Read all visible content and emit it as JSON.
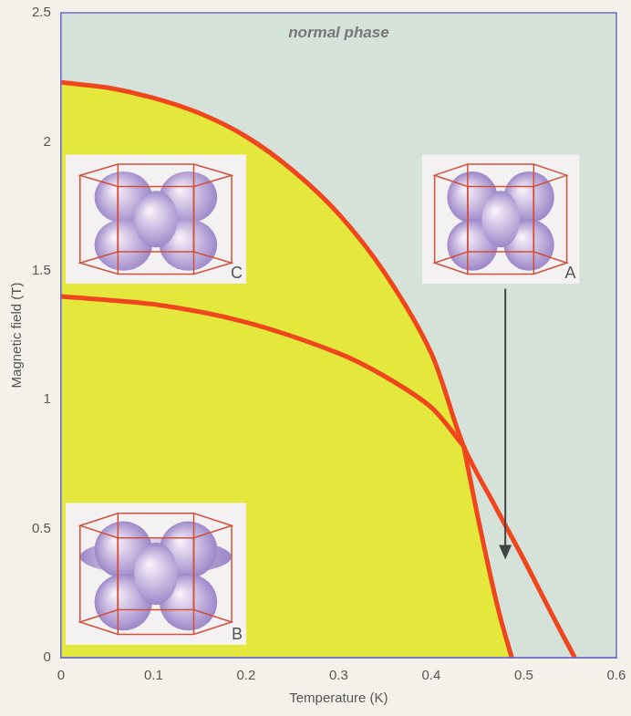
{
  "chart_data": {
    "type": "line",
    "x_label": "Temperature (K)",
    "y_label": "Magnetic field (T)",
    "xlim": [
      0,
      0.6
    ],
    "xticks": [
      0,
      0.1,
      0.2,
      0.3,
      0.4,
      0.5,
      0.6
    ],
    "ylim": [
      0,
      2.5
    ],
    "yticks": [
      0,
      0.5,
      1,
      1.5,
      2,
      2.5
    ],
    "grid": false,
    "series": [
      {
        "color": "#f0461e",
        "x": [
          0,
          0.05,
          0.1,
          0.15,
          0.2,
          0.25,
          0.3,
          0.35,
          0.4,
          0.435,
          0.47,
          0.5,
          0.53,
          0.555
        ],
        "values": [
          2.23,
          2.21,
          2.17,
          2.11,
          2.02,
          1.89,
          1.72,
          1.49,
          1.18,
          0.82,
          0.58,
          0.38,
          0.17,
          0
        ]
      },
      {
        "color": "#f0461e",
        "x": [
          0,
          0.1,
          0.2,
          0.3,
          0.35,
          0.4,
          0.435
        ],
        "values": [
          1.4,
          1.37,
          1.3,
          1.18,
          1.09,
          0.97,
          0.82
        ]
      },
      {
        "color": "#f0461e",
        "x": [
          0.435,
          0.45,
          0.465,
          0.475,
          0.487
        ],
        "values": [
          0.82,
          0.55,
          0.3,
          0.15,
          0
        ]
      }
    ],
    "annotations": [
      "normal phase",
      "A",
      "B",
      "C"
    ]
  }
}
